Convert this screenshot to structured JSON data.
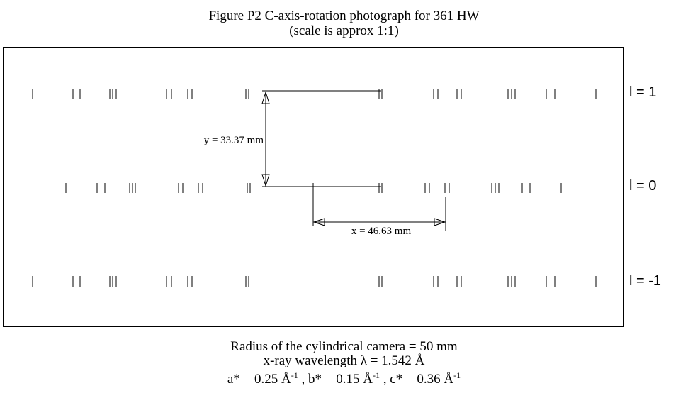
{
  "figure": {
    "title": "Figure P2   C-axis-rotation photograph for 361 HW",
    "subtitle": "(scale is approx 1:1)"
  },
  "layer_labels": {
    "l_plus1": "l = 1",
    "l_zero": "l = 0",
    "l_minus1": "l = -1"
  },
  "measurements": {
    "y_label": "y = 33.37 mm",
    "x_label": "x = 46.63 mm"
  },
  "footer": {
    "radius": "Radius of the cylindrical camera = 50 mm",
    "wavelength": "x-ray wavelength λ = 1.542 Å",
    "a_star": "a* = 0.25 Å",
    "b_star": " , b* = 0.15 Å",
    "c_star": " , c* = 0.36 Å",
    "exp": "-1"
  }
}
